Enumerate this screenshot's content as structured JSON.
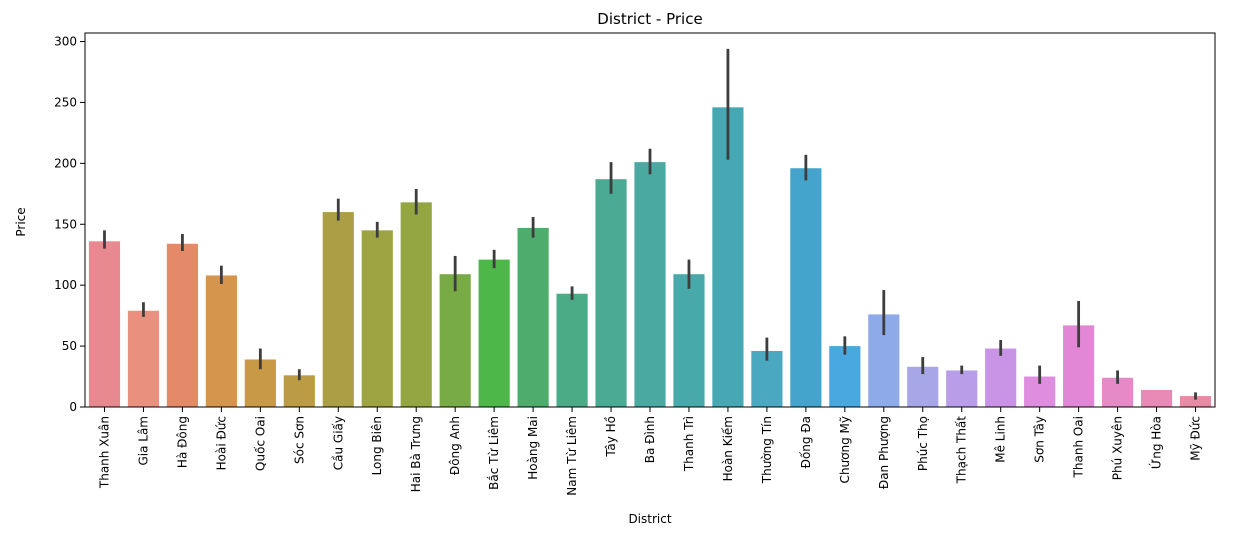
{
  "chart_data": {
    "type": "bar",
    "title": "District - Price",
    "xlabel": "District",
    "ylabel": "Price",
    "ylim": [
      0,
      307
    ],
    "yticks": [
      0,
      50,
      100,
      150,
      200,
      250,
      300
    ],
    "grid": false,
    "categories": [
      "Thanh Xuân",
      "Gia Lâm",
      "Hà Đông",
      "Hoài Đức",
      "Quốc Oai",
      "Sóc Sơn",
      "Cầu Giấy",
      "Long Biên",
      "Hai Bà Trưng",
      "Đông Anh",
      "Bắc Từ Liêm",
      "Hoàng Mai",
      "Nam Từ Liêm",
      "Tây Hồ",
      "Ba Đình",
      "Thanh Trì",
      "Hoàn Kiếm",
      "Thường Tín",
      "Đống Đa",
      "Chương Mỹ",
      "Đan Phượng",
      "Phúc Thọ",
      "Thạch Thất",
      "Mê Linh",
      "Sơn Tây",
      "Thanh Oai",
      "Phú Xuyên",
      "Ứng Hòa",
      "Mỹ Đức"
    ],
    "values": [
      136,
      79,
      134,
      108,
      39,
      26,
      160,
      145,
      168,
      109,
      121,
      147,
      93,
      187,
      201,
      109,
      246,
      46,
      196,
      50,
      76,
      33,
      30,
      48,
      25,
      67,
      24,
      14,
      9
    ],
    "error_low": [
      130,
      74,
      128,
      101,
      31,
      22,
      153,
      139,
      158,
      95,
      114,
      139,
      88,
      175,
      191,
      97,
      203,
      38,
      186,
      43,
      59,
      27,
      27,
      42,
      19,
      49,
      19,
      14,
      6
    ],
    "error_high": [
      145,
      86,
      142,
      116,
      48,
      31,
      171,
      152,
      179,
      124,
      129,
      156,
      99,
      201,
      212,
      121,
      294,
      57,
      207,
      58,
      96,
      41,
      34,
      55,
      34,
      87,
      30,
      14,
      12
    ],
    "colors": [
      "#e8888f",
      "#e9907f",
      "#e58a68",
      "#d5954c",
      "#c99a45",
      "#bb9c44",
      "#aa9f44",
      "#9ea341",
      "#93a642",
      "#78aa46",
      "#4db74a",
      "#4eac6d",
      "#4aab86",
      "#4aaa94",
      "#4aaaa2",
      "#48a9aa",
      "#46a8b3",
      "#4aa9c0",
      "#44a4cc",
      "#4aa8e0",
      "#8faae8",
      "#a7a6e7",
      "#b99de8",
      "#c994e5",
      "#de8ddf",
      "#e287d6",
      "#e589c7",
      "#e88ab5",
      "#e88ba5"
    ]
  }
}
